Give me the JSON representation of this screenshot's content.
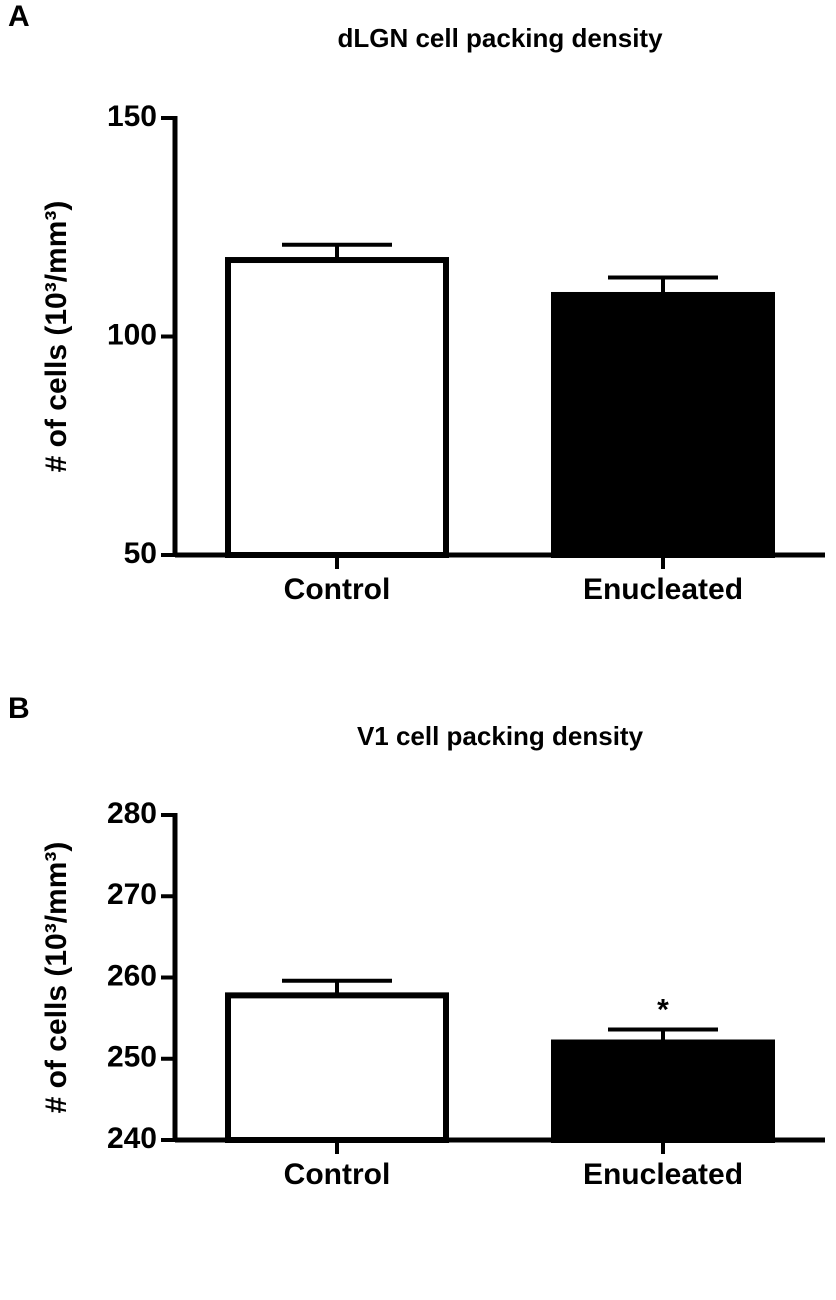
{
  "chart_data": [
    {
      "type": "bar",
      "panel_label": "A",
      "title": "dLGN cell packing density",
      "y_label": "# of cells (10³/mm³)",
      "categories": [
        "Control",
        "Enucleated"
      ],
      "values": [
        117.5,
        109.5
      ],
      "errors": [
        3.5,
        4
      ],
      "colors": [
        "#ffffff",
        "#000000"
      ],
      "ylim": [
        50,
        150
      ],
      "yticks": [
        50,
        100,
        150
      ]
    },
    {
      "type": "bar",
      "panel_label": "B",
      "title": "V1 cell packing density",
      "y_label": "# of cells (10³/mm³)",
      "categories": [
        "Control",
        "Enucleated"
      ],
      "values": [
        257.8,
        252
      ],
      "errors": [
        1.8,
        1.6
      ],
      "colors": [
        "#ffffff",
        "#000000"
      ],
      "annotation": "*",
      "ylim": [
        240,
        280
      ],
      "yticks": [
        240,
        250,
        260,
        270,
        280
      ]
    }
  ]
}
